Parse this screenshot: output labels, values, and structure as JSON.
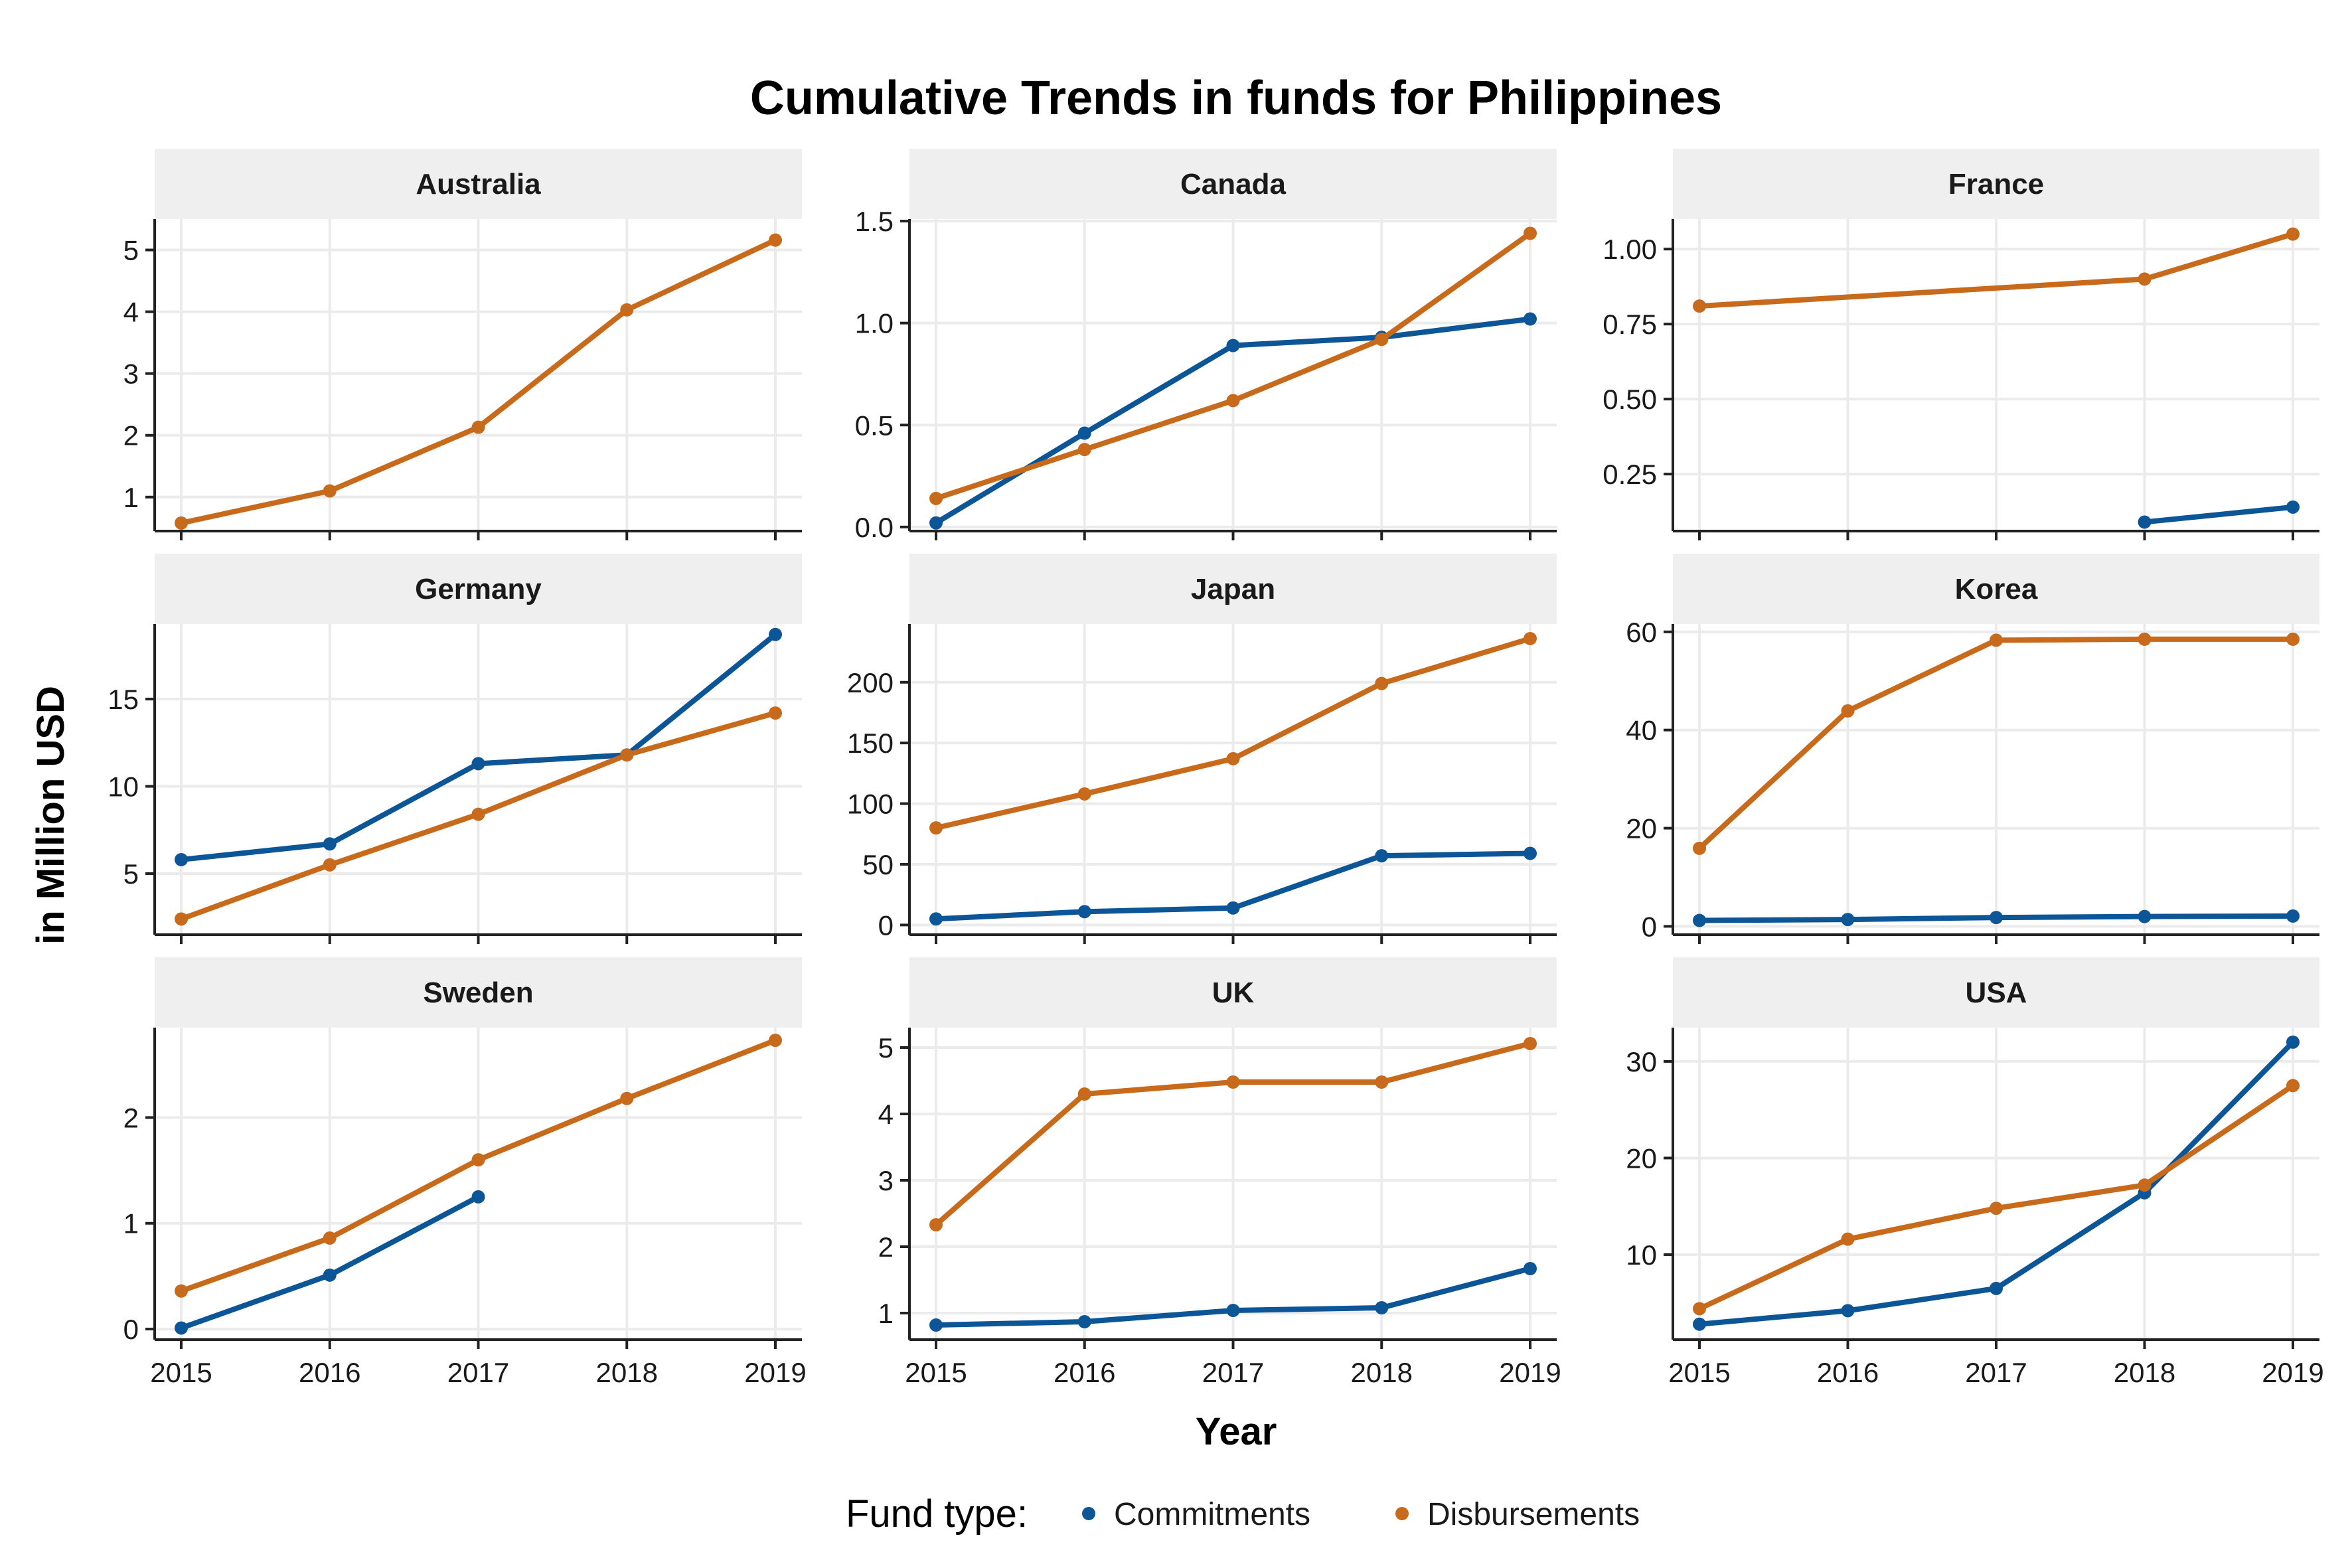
{
  "chart_data": {
    "type": "line",
    "title": "Cumulative Trends in funds for Philippines",
    "xlabel": "Year",
    "ylabel": "in Million USD",
    "x": [
      2015,
      2016,
      2017,
      2018,
      2019
    ],
    "x_tick_labels": [
      "2015",
      "2016",
      "2017",
      "2018",
      "2019"
    ],
    "legend": {
      "title": "Fund type:",
      "placement": "bottom",
      "items": [
        {
          "name": "Commitments",
          "color": "#0C5596"
        },
        {
          "name": "Disbursements",
          "color": "#C86A1B"
        }
      ]
    },
    "series_colors": {
      "Commitments": "#0C5596",
      "Disbursements": "#C86A1B"
    },
    "panels": [
      {
        "name": "Australia",
        "ylim": [
          0.45,
          5.5
        ],
        "yticks": [
          1,
          2,
          3,
          4,
          5
        ],
        "ytick_labels": [
          "1",
          "2",
          "3",
          "4",
          "5"
        ],
        "series": [
          {
            "name": "Disbursements",
            "points": [
              [
                2015,
                0.58
              ],
              [
                2016,
                1.1
              ],
              [
                2017,
                2.13
              ],
              [
                2018,
                4.03
              ],
              [
                2019,
                5.16
              ]
            ]
          }
        ]
      },
      {
        "name": "Canada",
        "ylim": [
          -0.02,
          1.51
        ],
        "yticks": [
          0,
          0.5,
          1.0,
          1.5
        ],
        "ytick_labels": [
          "0.0",
          "0.5",
          "1.0",
          "1.5"
        ],
        "series": [
          {
            "name": "Commitments",
            "points": [
              [
                2015,
                0.02
              ],
              [
                2016,
                0.46
              ],
              [
                2017,
                0.89
              ],
              [
                2018,
                0.93
              ],
              [
                2019,
                1.02
              ]
            ]
          },
          {
            "name": "Disbursements",
            "points": [
              [
                2015,
                0.14
              ],
              [
                2016,
                0.38
              ],
              [
                2017,
                0.62
              ],
              [
                2018,
                0.92
              ],
              [
                2019,
                1.44
              ]
            ]
          }
        ]
      },
      {
        "name": "France",
        "ylim": [
          0.06,
          1.1
        ],
        "yticks": [
          0.25,
          0.5,
          0.75,
          1.0
        ],
        "ytick_labels": [
          "0.25",
          "0.50",
          "0.75",
          "1.00"
        ],
        "series": [
          {
            "name": "Commitments",
            "points": [
              [
                2018,
                0.09
              ],
              [
                2019,
                0.14
              ]
            ]
          },
          {
            "name": "Disbursements",
            "points": [
              [
                2015,
                0.81
              ],
              [
                2018,
                0.9
              ],
              [
                2019,
                1.05
              ]
            ]
          }
        ]
      },
      {
        "name": "Germany",
        "ylim": [
          1.5,
          19.3
        ],
        "yticks": [
          5,
          10,
          15
        ],
        "ytick_labels": [
          "5",
          "10",
          "15"
        ],
        "series": [
          {
            "name": "Commitments",
            "points": [
              [
                2015,
                5.8
              ],
              [
                2016,
                6.7
              ],
              [
                2017,
                11.3
              ],
              [
                2018,
                11.8
              ],
              [
                2019,
                18.7
              ]
            ]
          },
          {
            "name": "Disbursements",
            "points": [
              [
                2015,
                2.4
              ],
              [
                2016,
                5.5
              ],
              [
                2017,
                8.4
              ],
              [
                2018,
                11.8
              ],
              [
                2019,
                14.2
              ]
            ]
          }
        ]
      },
      {
        "name": "Japan",
        "ylim": [
          -8,
          248
        ],
        "yticks": [
          0,
          50,
          100,
          150,
          200
        ],
        "ytick_labels": [
          "0",
          "50",
          "100",
          "150",
          "200"
        ],
        "series": [
          {
            "name": "Commitments",
            "points": [
              [
                2015,
                5
              ],
              [
                2016,
                11
              ],
              [
                2017,
                14
              ],
              [
                2018,
                57
              ],
              [
                2019,
                59
              ]
            ]
          },
          {
            "name": "Disbursements",
            "points": [
              [
                2015,
                80
              ],
              [
                2016,
                108
              ],
              [
                2017,
                137
              ],
              [
                2018,
                199
              ],
              [
                2019,
                236
              ]
            ]
          }
        ]
      },
      {
        "name": "Korea",
        "ylim": [
          -1.7,
          61.6
        ],
        "yticks": [
          0,
          20,
          40,
          60
        ],
        "ytick_labels": [
          "0",
          "20",
          "40",
          "60"
        ],
        "series": [
          {
            "name": "Commitments",
            "points": [
              [
                2015,
                1.2
              ],
              [
                2016,
                1.4
              ],
              [
                2017,
                1.8
              ],
              [
                2018,
                2.0
              ],
              [
                2019,
                2.1
              ]
            ]
          },
          {
            "name": "Disbursements",
            "points": [
              [
                2015,
                15.9
              ],
              [
                2016,
                43.9
              ],
              [
                2017,
                58.3
              ],
              [
                2018,
                58.5
              ],
              [
                2019,
                58.5
              ]
            ]
          }
        ]
      },
      {
        "name": "Sweden",
        "ylim": [
          -0.1,
          2.85
        ],
        "yticks": [
          0,
          1,
          2
        ],
        "ytick_labels": [
          "0",
          "1",
          "2"
        ],
        "series": [
          {
            "name": "Commitments",
            "points": [
              [
                2015,
                0.01
              ],
              [
                2016,
                0.51
              ],
              [
                2017,
                1.25
              ]
            ]
          },
          {
            "name": "Disbursements",
            "points": [
              [
                2015,
                0.36
              ],
              [
                2016,
                0.86
              ],
              [
                2017,
                1.6
              ],
              [
                2018,
                2.18
              ],
              [
                2019,
                2.73
              ]
            ]
          }
        ]
      },
      {
        "name": "UK",
        "ylim": [
          0.6,
          5.3
        ],
        "yticks": [
          1,
          2,
          3,
          4,
          5
        ],
        "ytick_labels": [
          "1",
          "2",
          "3",
          "4",
          "5"
        ],
        "series": [
          {
            "name": "Commitments",
            "points": [
              [
                2015,
                0.82
              ],
              [
                2016,
                0.87
              ],
              [
                2017,
                1.04
              ],
              [
                2018,
                1.08
              ],
              [
                2019,
                1.67
              ]
            ]
          },
          {
            "name": "Disbursements",
            "points": [
              [
                2015,
                2.33
              ],
              [
                2016,
                4.3
              ],
              [
                2017,
                4.48
              ],
              [
                2018,
                4.48
              ],
              [
                2019,
                5.06
              ]
            ]
          }
        ]
      },
      {
        "name": "USA",
        "ylim": [
          1.2,
          33.5
        ],
        "yticks": [
          10,
          20,
          30
        ],
        "ytick_labels": [
          "10",
          "20",
          "30"
        ],
        "series": [
          {
            "name": "Commitments",
            "points": [
              [
                2015,
                2.8
              ],
              [
                2016,
                4.2
              ],
              [
                2017,
                6.5
              ],
              [
                2018,
                16.4
              ],
              [
                2019,
                32.0
              ]
            ]
          },
          {
            "name": "Disbursements",
            "points": [
              [
                2015,
                4.4
              ],
              [
                2016,
                11.6
              ],
              [
                2017,
                14.8
              ],
              [
                2018,
                17.2
              ],
              [
                2019,
                27.5
              ]
            ]
          }
        ]
      }
    ]
  }
}
